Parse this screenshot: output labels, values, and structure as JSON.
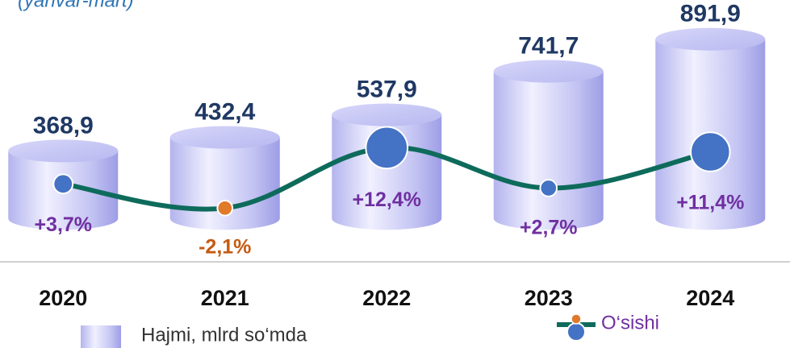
{
  "chart_data": {
    "type": "bar",
    "title": "(yanvar-mart)",
    "categories": [
      "2020",
      "2021",
      "2022",
      "2023",
      "2024"
    ],
    "ylim": [
      -150,
      1000
    ],
    "y2lim": [
      -15,
      44
    ],
    "series": [
      {
        "name": "Hajmi, mlrd so‘mda",
        "type": "bar",
        "color": "#c9c9f5",
        "values": [
          368.9,
          432.4,
          537.9,
          741.7,
          891.9
        ],
        "value_labels": [
          "368,9",
          "432,4",
          "537,9",
          "741,7",
          "891,9"
        ]
      },
      {
        "name": "O‘sishi",
        "type": "line",
        "axis": "y2",
        "color": "#0e6b5c",
        "marker_color": "#4472c4",
        "negative_color": "#e07a2a",
        "values": [
          3.7,
          -2.1,
          12.4,
          2.7,
          11.4
        ],
        "value_labels": [
          "+3,7%",
          "-2,1%",
          "+12,4%",
          "+2,7%",
          "+11,4%"
        ]
      }
    ]
  }
}
